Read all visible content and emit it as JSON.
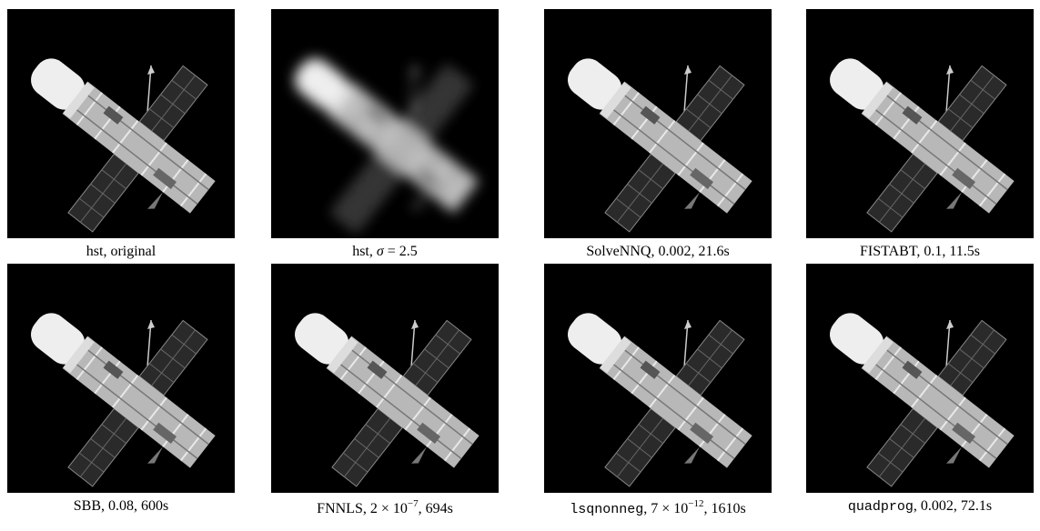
{
  "figures": [
    {
      "caption": [
        {
          "text": "hst, original"
        }
      ]
    },
    {
      "caption": [
        {
          "text": "hst, "
        },
        {
          "math": "σ"
        },
        {
          "text": " = 2.5"
        }
      ]
    },
    {
      "caption": [
        {
          "text": "SolveNNQ, 0.002, 21.6s"
        }
      ]
    },
    {
      "caption": [
        {
          "text": "FISTABT, 0.1, 11.5s"
        }
      ]
    },
    {
      "caption": [
        {
          "text": "SBB, 0.08, 600s"
        }
      ]
    },
    {
      "caption": [
        {
          "text": "FNNLS, 2 × 10"
        },
        {
          "sup": "−7"
        },
        {
          "text": ", 694s"
        }
      ]
    },
    {
      "caption": [
        {
          "code": "lsqnonneg"
        },
        {
          "text": ", 7 × 10"
        },
        {
          "sup": "−12"
        },
        {
          "text": ", 1610s"
        }
      ]
    },
    {
      "caption": [
        {
          "code": "quadprog"
        },
        {
          "text": ", 0.002, 72.1s"
        }
      ]
    }
  ]
}
